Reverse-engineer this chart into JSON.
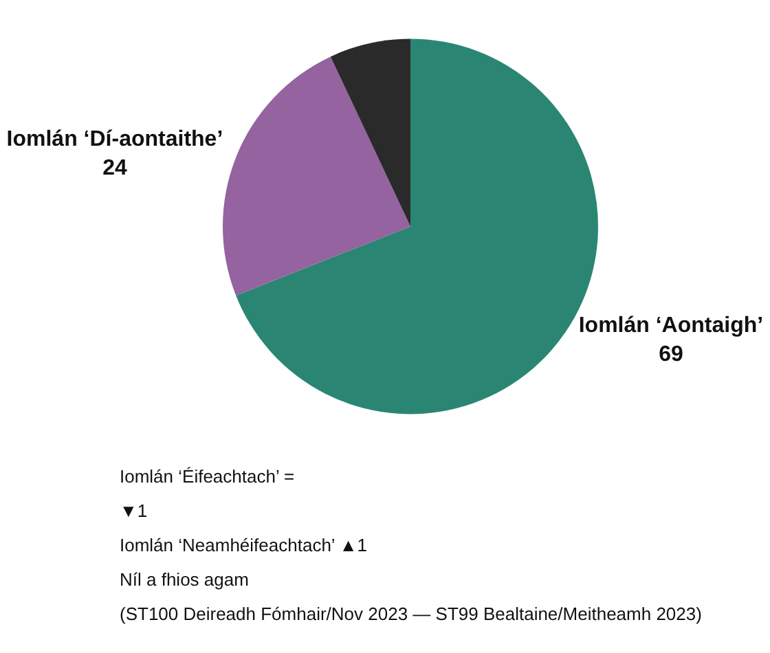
{
  "chart_data": {
    "type": "pie",
    "categories": [
      "Iomlán ‘Aontaigh’",
      "Iomlán ‘Dí-aontaithe’",
      null
    ],
    "values": [
      69,
      24,
      7
    ],
    "colors": [
      "#2a8673",
      "#9563a0",
      "#2a2a2a"
    ],
    "value_labels": [
      "69",
      "24",
      null
    ],
    "legend": false,
    "annotations": [
      "Iomlán ‘Éifeachtach’ =",
      "▼1",
      "Iomlán ‘Neamhéifeachtach’ ▲1",
      "Níl a fhios agam",
      "(ST100 Deireadh Fómhair/Nov 2023 — ST99 Bealtaine/Meitheamh 2023)"
    ]
  }
}
